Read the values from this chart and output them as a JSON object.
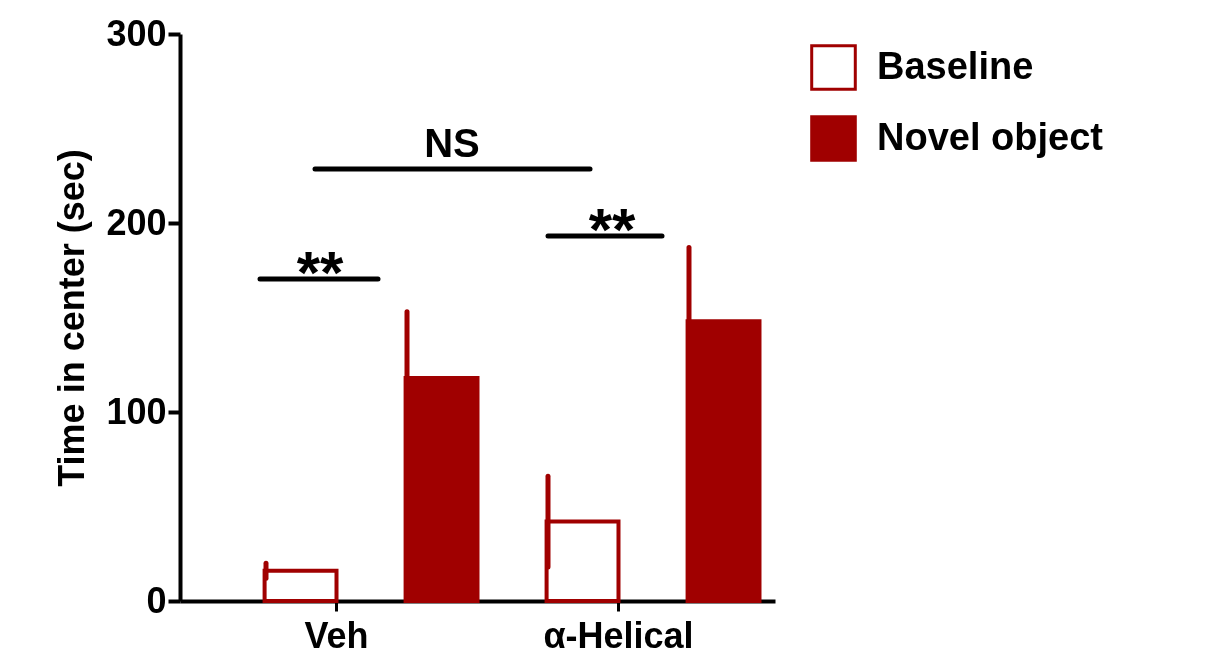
{
  "chart_data": {
    "type": "bar",
    "ylabel": "Time in center (sec)",
    "categories": [
      "Veh",
      "α-Helical"
    ],
    "series": [
      {
        "name": "Baseline",
        "color": "#a00000",
        "values": [
          16,
          42
        ],
        "errors": [
          4,
          24
        ]
      },
      {
        "name": "Novel object",
        "color": "#a00000",
        "values": [
          118,
          148
        ],
        "errors": [
          35,
          39
        ]
      }
    ],
    "ylim": [
      0,
      300
    ],
    "yticks": [
      0,
      100,
      200,
      300
    ],
    "grid": false,
    "legend": "top right",
    "annotations": [
      "NS",
      "**",
      "**"
    ]
  }
}
